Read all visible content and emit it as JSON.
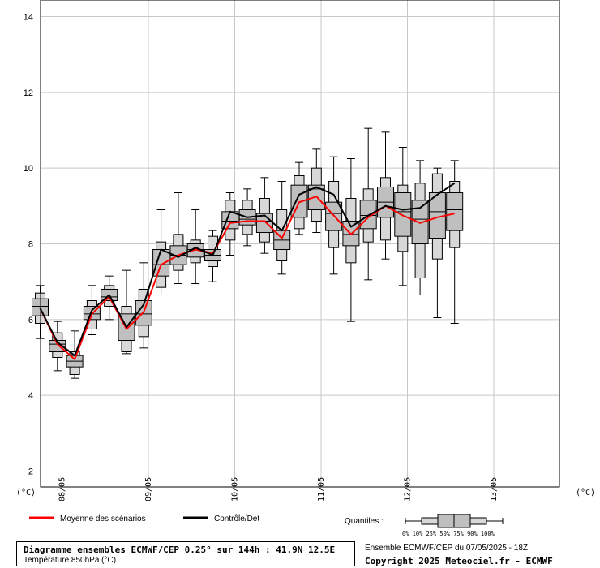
{
  "chart_data": {
    "type": "boxplot",
    "y_range": [
      2,
      14
    ],
    "y_ticks": [
      2,
      4,
      6,
      8,
      10,
      12,
      14
    ],
    "unit_left": "(°C)",
    "unit_right": "(°C)",
    "x_labels": [
      "08/05",
      "09/05",
      "10/05",
      "11/05",
      "12/05",
      "13/05"
    ],
    "grid": true,
    "boxes": [
      {
        "q0": 5.5,
        "q10": 5.9,
        "q25": 6.1,
        "q50": 6.35,
        "q75": 6.55,
        "q90": 6.7,
        "q100": 6.9
      },
      {
        "q0": 4.65,
        "q10": 5.0,
        "q25": 5.15,
        "q50": 5.35,
        "q75": 5.45,
        "q90": 5.65,
        "q100": 5.95
      },
      {
        "q0": 4.45,
        "q10": 4.55,
        "q25": 4.75,
        "q50": 4.9,
        "q75": 5.05,
        "q90": 5.15,
        "q100": 5.7
      },
      {
        "q0": 5.6,
        "q10": 5.75,
        "q25": 6.0,
        "q50": 6.15,
        "q75": 6.35,
        "q90": 6.5,
        "q100": 6.9
      },
      {
        "q0": 6.0,
        "q10": 6.35,
        "q25": 6.5,
        "q50": 6.6,
        "q75": 6.8,
        "q90": 6.9,
        "q100": 7.15
      },
      {
        "q0": 5.1,
        "q10": 5.15,
        "q25": 5.45,
        "q50": 5.75,
        "q75": 6.15,
        "q90": 6.35,
        "q100": 7.3
      },
      {
        "q0": 5.25,
        "q10": 5.55,
        "q25": 5.85,
        "q50": 6.15,
        "q75": 6.5,
        "q90": 6.8,
        "q100": 7.5
      },
      {
        "q0": 6.65,
        "q10": 6.85,
        "q25": 7.15,
        "q50": 7.45,
        "q75": 7.85,
        "q90": 8.05,
        "q100": 8.9
      },
      {
        "q0": 6.95,
        "q10": 7.3,
        "q25": 7.45,
        "q50": 7.7,
        "q75": 7.95,
        "q90": 8.25,
        "q100": 9.35
      },
      {
        "q0": 6.95,
        "q10": 7.5,
        "q25": 7.65,
        "q50": 7.85,
        "q75": 8.0,
        "q90": 8.1,
        "q100": 8.9
      },
      {
        "q0": 7.0,
        "q10": 7.4,
        "q25": 7.55,
        "q50": 7.7,
        "q75": 7.85,
        "q90": 8.2,
        "q100": 8.35
      },
      {
        "q0": 7.7,
        "q10": 8.1,
        "q25": 8.4,
        "q50": 8.6,
        "q75": 8.85,
        "q90": 9.15,
        "q100": 9.35
      },
      {
        "q0": 7.95,
        "q10": 8.25,
        "q25": 8.5,
        "q50": 8.65,
        "q75": 8.9,
        "q90": 9.15,
        "q100": 9.45
      },
      {
        "q0": 7.75,
        "q10": 8.05,
        "q25": 8.3,
        "q50": 8.6,
        "q75": 8.8,
        "q90": 9.2,
        "q100": 9.75
      },
      {
        "q0": 7.2,
        "q10": 7.55,
        "q25": 7.85,
        "q50": 8.1,
        "q75": 8.35,
        "q90": 8.9,
        "q100": 9.65
      },
      {
        "q0": 8.25,
        "q10": 8.4,
        "q25": 8.7,
        "q50": 9.05,
        "q75": 9.55,
        "q90": 9.8,
        "q100": 10.15
      },
      {
        "q0": 8.3,
        "q10": 8.6,
        "q25": 8.9,
        "q50": 9.45,
        "q75": 9.55,
        "q90": 10.0,
        "q100": 10.5
      },
      {
        "q0": 7.2,
        "q10": 7.9,
        "q25": 8.35,
        "q50": 8.8,
        "q75": 9.1,
        "q90": 9.65,
        "q100": 10.3
      },
      {
        "q0": 5.95,
        "q10": 7.5,
        "q25": 7.95,
        "q50": 8.25,
        "q75": 8.6,
        "q90": 9.2,
        "q100": 10.25
      },
      {
        "q0": 7.05,
        "q10": 8.05,
        "q25": 8.4,
        "q50": 8.75,
        "q75": 9.15,
        "q90": 9.45,
        "q100": 11.05
      },
      {
        "q0": 7.6,
        "q10": 8.1,
        "q25": 8.7,
        "q50": 9.1,
        "q75": 9.5,
        "q90": 9.75,
        "q100": 10.95
      },
      {
        "q0": 6.9,
        "q10": 7.8,
        "q25": 8.2,
        "q50": 8.85,
        "q75": 9.35,
        "q90": 9.55,
        "q100": 10.55
      },
      {
        "q0": 6.65,
        "q10": 7.1,
        "q25": 8.0,
        "q50": 8.65,
        "q75": 9.15,
        "q90": 9.6,
        "q100": 10.2
      },
      {
        "q0": 6.05,
        "q10": 7.6,
        "q25": 8.15,
        "q50": 8.85,
        "q75": 9.35,
        "q90": 9.85,
        "q100": 10.0
      },
      {
        "q0": 5.9,
        "q10": 7.9,
        "q25": 8.35,
        "q50": 8.9,
        "q75": 9.35,
        "q90": 9.65,
        "q100": 10.2
      }
    ],
    "series": [
      {
        "name": "Moyenne des scénarios",
        "color": "#ff0000",
        "values": [
          6.3,
          5.35,
          4.95,
          6.15,
          6.6,
          5.75,
          6.2,
          7.45,
          7.7,
          7.85,
          7.75,
          8.55,
          8.6,
          8.6,
          8.15,
          9.1,
          9.25,
          8.75,
          8.25,
          8.7,
          9.0,
          8.75,
          8.55,
          8.7,
          8.8
        ]
      },
      {
        "name": "Contrôle/Det",
        "color": "#000000",
        "values": [
          6.3,
          5.4,
          5.05,
          6.25,
          6.65,
          5.8,
          6.4,
          7.85,
          7.65,
          7.9,
          7.7,
          8.85,
          8.7,
          8.75,
          8.35,
          9.3,
          9.5,
          9.3,
          8.45,
          8.75,
          9.0,
          8.9,
          8.95,
          9.3,
          9.6
        ]
      }
    ]
  },
  "legend": {
    "mean_label": "Moyenne des scénarios",
    "control_label": "Contrôle/Det",
    "mean_color": "#ff0000",
    "control_color": "#000000",
    "quantiles_label": "Quantiles :",
    "quantiles_scale": "0%  10% 25% 50% 75% 90% 100%"
  },
  "title": {
    "line1": "Diagramme ensembles ECMWF/CEP 0.25° sur 144h : 41.9N 12.5E",
    "line2": "Température 850hPa (°C)"
  },
  "info": {
    "run": "Ensemble ECMWF/CEP du 07/05/2025 - 18Z",
    "copyright": "Copyright 2025 Meteociel.fr - ECMWF"
  }
}
